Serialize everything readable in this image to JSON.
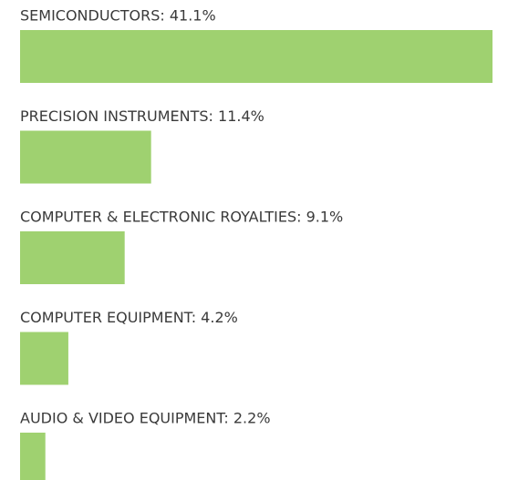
{
  "chart_data": {
    "type": "bar",
    "orientation": "horizontal",
    "values": [
      41.1,
      11.4,
      9.1,
      4.2,
      2.2
    ],
    "value_labels": [
      "SEMICONDUCTORS: 41.1%",
      "PRECISION INSTRUMENTS: 11.4%",
      "COMPUTER & ELECTRONIC ROYALTIES: 9.1%",
      "COMPUTER EQUIPMENT: 4.2%",
      "AUDIO & VIDEO EQUIPMENT: 2.2%"
    ],
    "color": "#9fd170"
  }
}
